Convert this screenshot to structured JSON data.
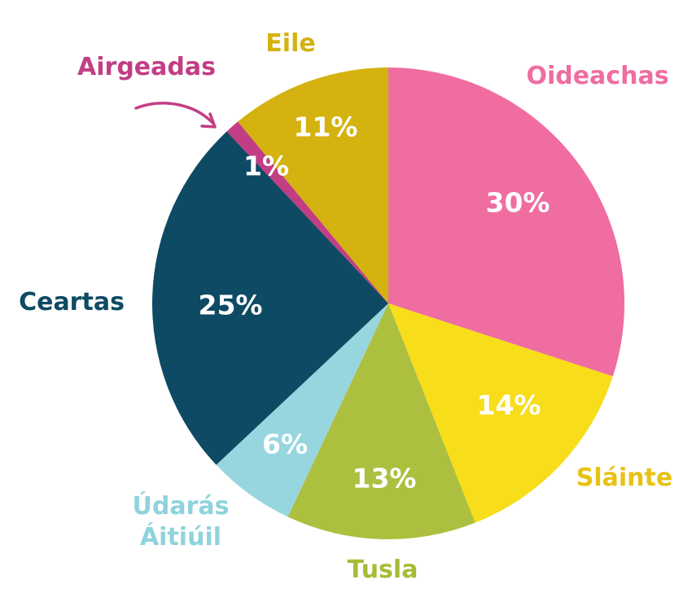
{
  "chart_data": {
    "type": "pie",
    "title": "",
    "start": "12 o'clock",
    "direction": "clockwise",
    "slices": [
      {
        "name": "Oideachas",
        "value": 30,
        "label": "30%",
        "color": "#ef6da0",
        "label_color": "#ef6da0"
      },
      {
        "name": "Sláinte",
        "value": 14,
        "label": "14%",
        "color": "#f7dd1a",
        "label_color": "#e8c214"
      },
      {
        "name": "Tusla",
        "value": 13,
        "label": "13%",
        "color": "#adbf3f",
        "label_color": "#a8bb37"
      },
      {
        "name": "Údarás Áitiúil",
        "value": 6,
        "label": "6%",
        "color": "#97d6df",
        "label_color": "#8fd3dc"
      },
      {
        "name": "Ceartas",
        "value": 25,
        "label": "25%",
        "color": "#0e4a63",
        "label_color": "#0e4a63"
      },
      {
        "name": "Airgeadas",
        "value": 1,
        "label": "1%",
        "color": "#c23e84",
        "label_color": "#c23e84"
      },
      {
        "name": "Eile",
        "value": 11,
        "label": "11%",
        "color": "#d4b20f",
        "label_color": "#d4b20f"
      }
    ]
  }
}
